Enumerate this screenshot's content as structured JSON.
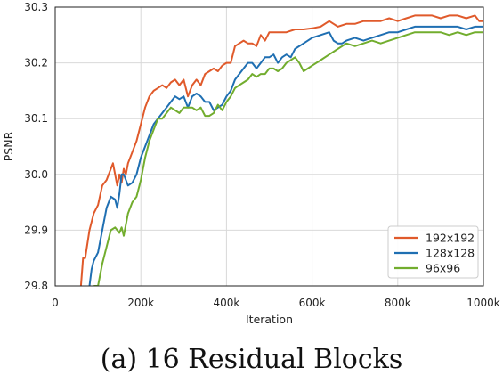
{
  "caption": "(a) 16 Residual Blocks",
  "chart_data": {
    "type": "line",
    "xlabel": "Iteration",
    "ylabel": "PSNR",
    "xlim": [
      0,
      1000
    ],
    "ylim": [
      29.8,
      30.3
    ],
    "x_ticks": [
      0,
      200,
      400,
      600,
      800,
      1000
    ],
    "x_tick_labels": [
      "0",
      "200k",
      "400k",
      "600k",
      "800k",
      "1000k"
    ],
    "y_ticks": [
      29.8,
      29.9,
      30.0,
      30.1,
      30.2,
      30.3
    ],
    "y_tick_labels": [
      "29.8",
      "29.9",
      "30.0",
      "30.1",
      "30.2",
      "30.3"
    ],
    "grid": true,
    "legend_position": "lower-right",
    "series": [
      {
        "name": "192x192",
        "color": "#e05a2b",
        "points": [
          [
            60,
            29.8
          ],
          [
            65,
            29.85
          ],
          [
            70,
            29.85
          ],
          [
            80,
            29.9
          ],
          [
            90,
            29.93
          ],
          [
            100,
            29.945
          ],
          [
            110,
            29.98
          ],
          [
            120,
            29.99
          ],
          [
            130,
            30.01
          ],
          [
            135,
            30.02
          ],
          [
            140,
            30.0
          ],
          [
            145,
            29.98
          ],
          [
            150,
            30.0
          ],
          [
            155,
            29.985
          ],
          [
            160,
            30.01
          ],
          [
            165,
            30.0
          ],
          [
            170,
            30.02
          ],
          [
            180,
            30.04
          ],
          [
            190,
            30.06
          ],
          [
            200,
            30.09
          ],
          [
            210,
            30.12
          ],
          [
            220,
            30.14
          ],
          [
            230,
            30.15
          ],
          [
            240,
            30.155
          ],
          [
            250,
            30.16
          ],
          [
            260,
            30.155
          ],
          [
            270,
            30.165
          ],
          [
            280,
            30.17
          ],
          [
            290,
            30.16
          ],
          [
            300,
            30.17
          ],
          [
            310,
            30.14
          ],
          [
            320,
            30.16
          ],
          [
            330,
            30.17
          ],
          [
            340,
            30.16
          ],
          [
            350,
            30.18
          ],
          [
            360,
            30.185
          ],
          [
            370,
            30.19
          ],
          [
            380,
            30.185
          ],
          [
            390,
            30.195
          ],
          [
            400,
            30.2
          ],
          [
            410,
            30.2
          ],
          [
            420,
            30.23
          ],
          [
            430,
            30.235
          ],
          [
            440,
            30.24
          ],
          [
            450,
            30.235
          ],
          [
            460,
            30.235
          ],
          [
            470,
            30.23
          ],
          [
            480,
            30.25
          ],
          [
            490,
            30.24
          ],
          [
            500,
            30.255
          ],
          [
            520,
            30.255
          ],
          [
            540,
            30.255
          ],
          [
            560,
            30.26
          ],
          [
            580,
            30.26
          ],
          [
            600,
            30.262
          ],
          [
            620,
            30.265
          ],
          [
            640,
            30.275
          ],
          [
            650,
            30.27
          ],
          [
            660,
            30.265
          ],
          [
            680,
            30.27
          ],
          [
            700,
            30.27
          ],
          [
            720,
            30.275
          ],
          [
            740,
            30.275
          ],
          [
            760,
            30.275
          ],
          [
            780,
            30.28
          ],
          [
            800,
            30.275
          ],
          [
            820,
            30.28
          ],
          [
            840,
            30.285
          ],
          [
            860,
            30.285
          ],
          [
            880,
            30.285
          ],
          [
            900,
            30.28
          ],
          [
            920,
            30.285
          ],
          [
            940,
            30.285
          ],
          [
            960,
            30.28
          ],
          [
            980,
            30.285
          ],
          [
            990,
            30.275
          ],
          [
            1000,
            30.275
          ]
        ]
      },
      {
        "name": "128x128",
        "color": "#1f6fb2",
        "points": [
          [
            80,
            29.8
          ],
          [
            85,
            29.83
          ],
          [
            90,
            29.845
          ],
          [
            100,
            29.86
          ],
          [
            110,
            29.9
          ],
          [
            120,
            29.94
          ],
          [
            130,
            29.96
          ],
          [
            140,
            29.955
          ],
          [
            145,
            29.94
          ],
          [
            150,
            29.965
          ],
          [
            155,
            30.0
          ],
          [
            160,
            30.0
          ],
          [
            170,
            29.98
          ],
          [
            180,
            29.985
          ],
          [
            190,
            30.0
          ],
          [
            200,
            30.03
          ],
          [
            210,
            30.05
          ],
          [
            220,
            30.07
          ],
          [
            230,
            30.09
          ],
          [
            240,
            30.1
          ],
          [
            250,
            30.11
          ],
          [
            260,
            30.12
          ],
          [
            270,
            30.13
          ],
          [
            280,
            30.14
          ],
          [
            290,
            30.135
          ],
          [
            300,
            30.14
          ],
          [
            310,
            30.12
          ],
          [
            320,
            30.14
          ],
          [
            330,
            30.145
          ],
          [
            340,
            30.14
          ],
          [
            350,
            30.13
          ],
          [
            360,
            30.13
          ],
          [
            370,
            30.115
          ],
          [
            380,
            30.12
          ],
          [
            390,
            30.125
          ],
          [
            400,
            30.14
          ],
          [
            410,
            30.15
          ],
          [
            420,
            30.17
          ],
          [
            430,
            30.18
          ],
          [
            440,
            30.19
          ],
          [
            450,
            30.2
          ],
          [
            460,
            30.2
          ],
          [
            470,
            30.19
          ],
          [
            480,
            30.2
          ],
          [
            490,
            30.21
          ],
          [
            500,
            30.21
          ],
          [
            510,
            30.215
          ],
          [
            520,
            30.2
          ],
          [
            530,
            30.21
          ],
          [
            540,
            30.215
          ],
          [
            550,
            30.21
          ],
          [
            560,
            30.225
          ],
          [
            580,
            30.235
          ],
          [
            600,
            30.245
          ],
          [
            620,
            30.25
          ],
          [
            640,
            30.255
          ],
          [
            650,
            30.24
          ],
          [
            660,
            30.235
          ],
          [
            670,
            30.235
          ],
          [
            680,
            30.24
          ],
          [
            700,
            30.245
          ],
          [
            720,
            30.24
          ],
          [
            740,
            30.245
          ],
          [
            760,
            30.25
          ],
          [
            780,
            30.255
          ],
          [
            800,
            30.255
          ],
          [
            820,
            30.26
          ],
          [
            840,
            30.265
          ],
          [
            860,
            30.265
          ],
          [
            880,
            30.265
          ],
          [
            900,
            30.265
          ],
          [
            920,
            30.265
          ],
          [
            940,
            30.265
          ],
          [
            960,
            30.26
          ],
          [
            980,
            30.265
          ],
          [
            1000,
            30.265
          ]
        ]
      },
      {
        "name": "96x96",
        "color": "#72ad2e",
        "points": [
          [
            90,
            29.8
          ],
          [
            100,
            29.8
          ],
          [
            110,
            29.84
          ],
          [
            120,
            29.87
          ],
          [
            130,
            29.9
          ],
          [
            140,
            29.905
          ],
          [
            145,
            29.9
          ],
          [
            150,
            29.895
          ],
          [
            155,
            29.905
          ],
          [
            160,
            29.89
          ],
          [
            170,
            29.93
          ],
          [
            180,
            29.95
          ],
          [
            190,
            29.96
          ],
          [
            200,
            29.99
          ],
          [
            210,
            30.03
          ],
          [
            220,
            30.06
          ],
          [
            230,
            30.08
          ],
          [
            240,
            30.1
          ],
          [
            250,
            30.1
          ],
          [
            260,
            30.11
          ],
          [
            270,
            30.12
          ],
          [
            280,
            30.115
          ],
          [
            290,
            30.11
          ],
          [
            300,
            30.12
          ],
          [
            310,
            30.12
          ],
          [
            320,
            30.12
          ],
          [
            330,
            30.115
          ],
          [
            340,
            30.12
          ],
          [
            350,
            30.105
          ],
          [
            360,
            30.105
          ],
          [
            370,
            30.11
          ],
          [
            380,
            30.125
          ],
          [
            390,
            30.115
          ],
          [
            400,
            30.13
          ],
          [
            410,
            30.14
          ],
          [
            420,
            30.155
          ],
          [
            430,
            30.16
          ],
          [
            440,
            30.165
          ],
          [
            450,
            30.17
          ],
          [
            460,
            30.18
          ],
          [
            470,
            30.175
          ],
          [
            480,
            30.18
          ],
          [
            490,
            30.18
          ],
          [
            500,
            30.19
          ],
          [
            510,
            30.19
          ],
          [
            520,
            30.185
          ],
          [
            530,
            30.19
          ],
          [
            540,
            30.2
          ],
          [
            550,
            30.205
          ],
          [
            560,
            30.21
          ],
          [
            570,
            30.2
          ],
          [
            580,
            30.185
          ],
          [
            590,
            30.19
          ],
          [
            600,
            30.195
          ],
          [
            620,
            30.205
          ],
          [
            640,
            30.215
          ],
          [
            660,
            30.225
          ],
          [
            680,
            30.235
          ],
          [
            700,
            30.23
          ],
          [
            720,
            30.235
          ],
          [
            740,
            30.24
          ],
          [
            760,
            30.235
          ],
          [
            780,
            30.24
          ],
          [
            800,
            30.245
          ],
          [
            820,
            30.25
          ],
          [
            840,
            30.255
          ],
          [
            860,
            30.255
          ],
          [
            880,
            30.255
          ],
          [
            900,
            30.255
          ],
          [
            920,
            30.25
          ],
          [
            940,
            30.255
          ],
          [
            960,
            30.25
          ],
          [
            980,
            30.255
          ],
          [
            1000,
            30.255
          ]
        ]
      }
    ]
  }
}
